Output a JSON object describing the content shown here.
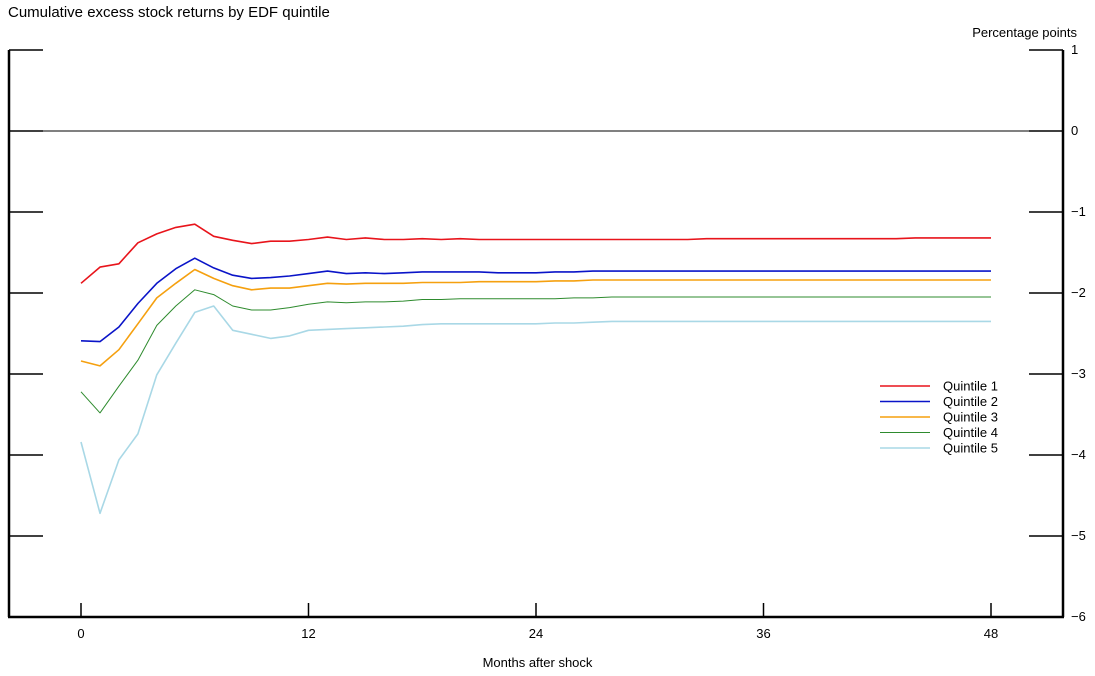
{
  "chart_data": {
    "type": "line",
    "title": "Cumulative excess stock returns by EDF quintile",
    "xlabel": "Months after shock",
    "ylabel": "Percentage points",
    "xlim": [
      -4,
      52
    ],
    "ylim": [
      -6,
      1
    ],
    "x_ticks": [
      0,
      12,
      24,
      36,
      48
    ],
    "y_ticks": [
      1,
      0,
      -1,
      -2,
      -3,
      -4,
      -5,
      -6
    ],
    "y_tick_labels": [
      "1",
      "0",
      "−1",
      "−2",
      "−3",
      "−4",
      "−5",
      "−6"
    ],
    "zero_line": true,
    "grid": false,
    "legend_position": "right",
    "x": [
      0,
      1,
      2,
      3,
      4,
      5,
      6,
      7,
      8,
      9,
      10,
      11,
      12,
      13,
      14,
      15,
      16,
      17,
      18,
      19,
      20,
      21,
      22,
      23,
      24,
      25,
      26,
      27,
      28,
      29,
      30,
      31,
      32,
      33,
      34,
      35,
      36,
      37,
      38,
      39,
      40,
      41,
      42,
      43,
      44,
      45,
      46,
      47,
      48
    ],
    "series": [
      {
        "name": "Quintile 1",
        "color": "#e8141b",
        "width": 1.6,
        "values": [
          -1.88,
          -1.68,
          -1.64,
          -1.38,
          -1.27,
          -1.19,
          -1.15,
          -1.3,
          -1.35,
          -1.39,
          -1.36,
          -1.36,
          -1.34,
          -1.31,
          -1.34,
          -1.32,
          -1.34,
          -1.34,
          -1.33,
          -1.34,
          -1.33,
          -1.34,
          -1.34,
          -1.34,
          -1.34,
          -1.34,
          -1.34,
          -1.34,
          -1.34,
          -1.34,
          -1.34,
          -1.34,
          -1.34,
          -1.33,
          -1.33,
          -1.33,
          -1.33,
          -1.33,
          -1.33,
          -1.33,
          -1.33,
          -1.33,
          -1.33,
          -1.33,
          -1.32,
          -1.32,
          -1.32,
          -1.32,
          -1.32
        ]
      },
      {
        "name": "Quintile 2",
        "color": "#0a14c8",
        "width": 1.6,
        "values": [
          -2.59,
          -2.6,
          -2.42,
          -2.13,
          -1.88,
          -1.7,
          -1.57,
          -1.69,
          -1.78,
          -1.82,
          -1.81,
          -1.79,
          -1.76,
          -1.73,
          -1.76,
          -1.75,
          -1.76,
          -1.75,
          -1.74,
          -1.74,
          -1.74,
          -1.74,
          -1.75,
          -1.75,
          -1.75,
          -1.74,
          -1.74,
          -1.73,
          -1.73,
          -1.73,
          -1.73,
          -1.73,
          -1.73,
          -1.73,
          -1.73,
          -1.73,
          -1.73,
          -1.73,
          -1.73,
          -1.73,
          -1.73,
          -1.73,
          -1.73,
          -1.73,
          -1.73,
          -1.73,
          -1.73,
          -1.73,
          -1.73
        ]
      },
      {
        "name": "Quintile 3",
        "color": "#f5a00f",
        "width": 1.6,
        "values": [
          -2.84,
          -2.9,
          -2.7,
          -2.38,
          -2.06,
          -1.88,
          -1.71,
          -1.82,
          -1.91,
          -1.96,
          -1.94,
          -1.94,
          -1.91,
          -1.88,
          -1.89,
          -1.88,
          -1.88,
          -1.88,
          -1.87,
          -1.87,
          -1.87,
          -1.86,
          -1.86,
          -1.86,
          -1.86,
          -1.85,
          -1.85,
          -1.84,
          -1.84,
          -1.84,
          -1.84,
          -1.84,
          -1.84,
          -1.84,
          -1.84,
          -1.84,
          -1.84,
          -1.84,
          -1.84,
          -1.84,
          -1.84,
          -1.84,
          -1.84,
          -1.84,
          -1.84,
          -1.84,
          -1.84,
          -1.84,
          -1.84
        ]
      },
      {
        "name": "Quintile 4",
        "color": "#2e8b2e",
        "width": 1.0,
        "values": [
          -3.22,
          -3.48,
          -3.15,
          -2.83,
          -2.4,
          -2.16,
          -1.96,
          -2.02,
          -2.16,
          -2.21,
          -2.21,
          -2.18,
          -2.14,
          -2.11,
          -2.12,
          -2.11,
          -2.11,
          -2.1,
          -2.08,
          -2.08,
          -2.07,
          -2.07,
          -2.07,
          -2.07,
          -2.07,
          -2.07,
          -2.06,
          -2.06,
          -2.05,
          -2.05,
          -2.05,
          -2.05,
          -2.05,
          -2.05,
          -2.05,
          -2.05,
          -2.05,
          -2.05,
          -2.05,
          -2.05,
          -2.05,
          -2.05,
          -2.05,
          -2.05,
          -2.05,
          -2.05,
          -2.05,
          -2.05,
          -2.05
        ]
      },
      {
        "name": "Quintile 5",
        "color": "#a9d8e6",
        "width": 1.6,
        "values": [
          -3.84,
          -4.72,
          -4.06,
          -3.74,
          -3.01,
          -2.62,
          -2.24,
          -2.16,
          -2.46,
          -2.51,
          -2.56,
          -2.53,
          -2.46,
          -2.45,
          -2.44,
          -2.43,
          -2.42,
          -2.41,
          -2.39,
          -2.38,
          -2.38,
          -2.38,
          -2.38,
          -2.38,
          -2.38,
          -2.37,
          -2.37,
          -2.36,
          -2.35,
          -2.35,
          -2.35,
          -2.35,
          -2.35,
          -2.35,
          -2.35,
          -2.35,
          -2.35,
          -2.35,
          -2.35,
          -2.35,
          -2.35,
          -2.35,
          -2.35,
          -2.35,
          -2.35,
          -2.35,
          -2.35,
          -2.35,
          -2.35
        ]
      }
    ]
  }
}
